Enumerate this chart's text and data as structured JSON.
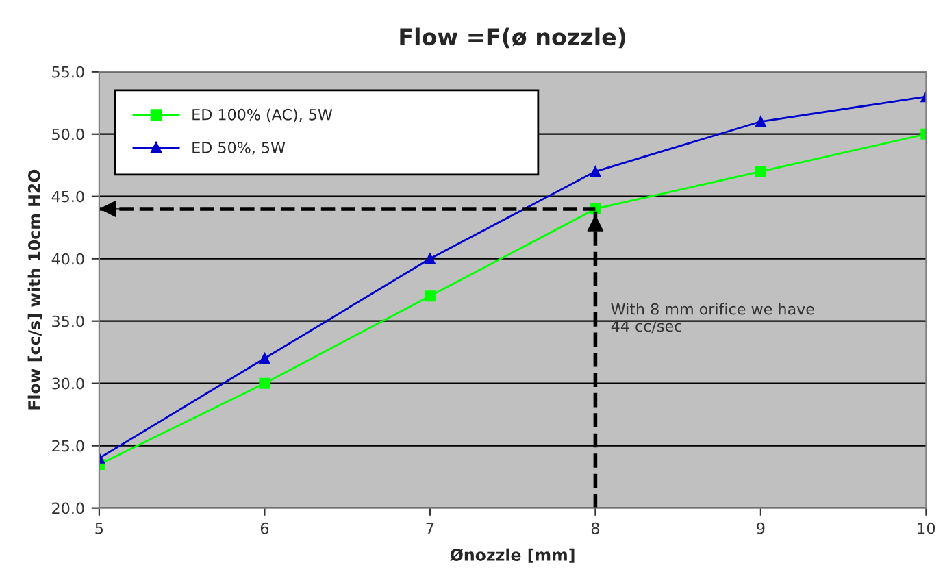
{
  "chart_data": {
    "type": "line",
    "title": "Flow =F(ø nozzle)",
    "xlabel": "Ønozzle [mm]",
    "ylabel": "Flow [cc/s] with 10cm H2O",
    "x": [
      5,
      6,
      7,
      8,
      9,
      10
    ],
    "series": [
      {
        "name": "ED 100% (AC), 5W",
        "color": "#00ff00",
        "marker": "square",
        "values": [
          23.5,
          30,
          37,
          44,
          47,
          50
        ]
      },
      {
        "name": "ED 50%, 5W",
        "color": "#0000cc",
        "marker": "triangle",
        "values": [
          24,
          32,
          40,
          47,
          51,
          53
        ]
      }
    ],
    "xlim": [
      5,
      10
    ],
    "xticks": [
      5,
      6,
      7,
      8,
      9,
      10
    ],
    "ylim": [
      20,
      55
    ],
    "yticks": [
      {
        "value": 20,
        "label": "20.0"
      },
      {
        "value": 25,
        "label": "25.0"
      },
      {
        "value": 30,
        "label": "30.0"
      },
      {
        "value": 35,
        "label": "35.0"
      },
      {
        "value": 40,
        "label": "40.0"
      },
      {
        "value": 45,
        "label": "45.0"
      },
      {
        "value": 50,
        "label": "50.0"
      },
      {
        "value": 55,
        "label": "55.0"
      }
    ],
    "grid": "y",
    "legend": "top left",
    "line_style": "solid",
    "ref_lines": [
      {
        "axis": "x",
        "value": 8,
        "color": "#000000",
        "line_style": "dashed"
      },
      {
        "axis": "y",
        "value": 44,
        "color": "#000000",
        "line_style": "dashed"
      }
    ],
    "annotations": [
      "With 8 mm orifice we have\n44 cc/sec"
    ]
  }
}
